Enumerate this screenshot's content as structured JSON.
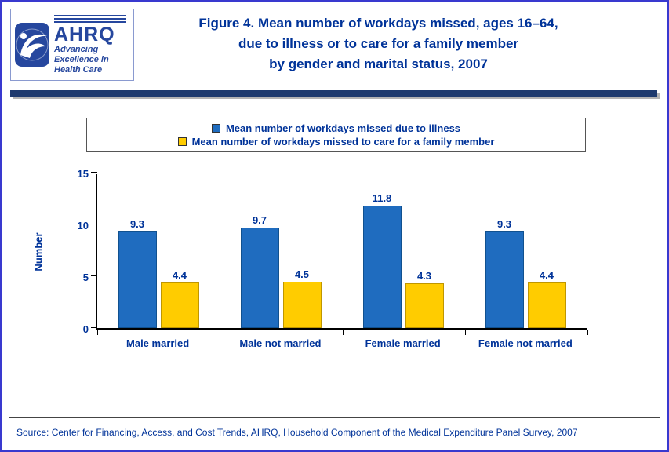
{
  "colors": {
    "border_blue": "#3939cf",
    "text_blue": "#003399",
    "divider_navy": "#1e3a6e",
    "logo_blue": "#26479e",
    "legend_border": "#555555"
  },
  "header": {
    "logo": {
      "name": "AHRQ",
      "tagline_lines": [
        "Advancing",
        "Excellence in",
        "Health Care"
      ]
    },
    "title_lines": [
      "Figure 4. Mean number of workdays missed, ages 16–64,",
      "due to illness or to care for a family member",
      "by gender and marital status, 2007"
    ]
  },
  "footer": {
    "source": "Source: Center for Financing, Access, and Cost Trends, AHRQ, Household Component of the Medical Expenditure Panel Survey, 2007"
  },
  "chart_data": {
    "type": "bar",
    "title": "Figure 4. Mean number of workdays missed, ages 16–64, due to illness or to care for a family member by gender and marital status, 2007",
    "categories": [
      "Male married",
      "Male not married",
      "Female married",
      "Female not married"
    ],
    "series": [
      {
        "name": "Mean number of workdays missed due to illness",
        "color": "#1f6cbf",
        "edge": "#11518f",
        "values": [
          9.3,
          9.7,
          11.8,
          9.3
        ]
      },
      {
        "name": "Mean number of workdays missed to care for a family member",
        "color": "#ffcc00",
        "edge": "#bf9600",
        "values": [
          4.4,
          4.5,
          4.3,
          4.4
        ]
      }
    ],
    "xlabel": "",
    "ylabel": "Number",
    "ylim": [
      0,
      15
    ],
    "yticks": [
      0,
      5,
      10,
      15
    ],
    "grid": false,
    "legend_position": "top",
    "value_labels": true
  }
}
